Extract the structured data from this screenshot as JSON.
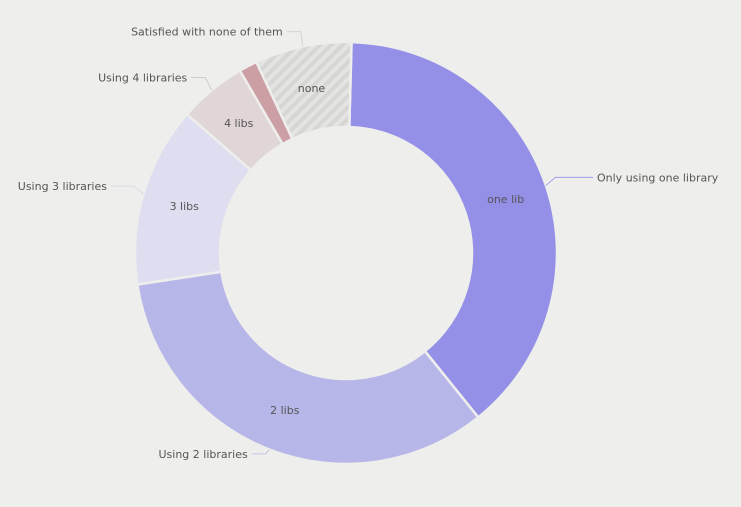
{
  "chart_data": {
    "type": "pie",
    "variant": "donut",
    "title": "",
    "unit": "%",
    "slices": [
      {
        "key": "one",
        "label": "one lib",
        "legend": "Only using one library",
        "value": 38.8,
        "color": "#9490e8",
        "leader_color": "#9490e8",
        "pattern": false
      },
      {
        "key": "two",
        "label": "2 libs",
        "legend": "Using 2 libraries",
        "value": 33.4,
        "color": "#b7b6e8",
        "leader_color": "#b7b6e8",
        "pattern": false
      },
      {
        "key": "three",
        "label": "3 libs",
        "legend": "Using 3 libraries",
        "value": 13.8,
        "color": "#dedef0",
        "leader_color": "#d4d4e0",
        "pattern": false
      },
      {
        "key": "four",
        "label": "4 libs",
        "legend": "Using 4 libraries",
        "value": 5.2,
        "color": "#e0d6d7",
        "leader_color": "#d0c6c6",
        "pattern": false
      },
      {
        "key": "five",
        "label": "",
        "legend": "",
        "value": 1.4,
        "color": "#cc9fa5",
        "leader_color": "#cc9fa5",
        "pattern": false
      },
      {
        "key": "none",
        "label": "none",
        "legend": "Satisfied with none of them",
        "value": 7.4,
        "color": "#e4e4e2",
        "leader_color": "#cfcfcd",
        "pattern": true
      }
    ]
  }
}
